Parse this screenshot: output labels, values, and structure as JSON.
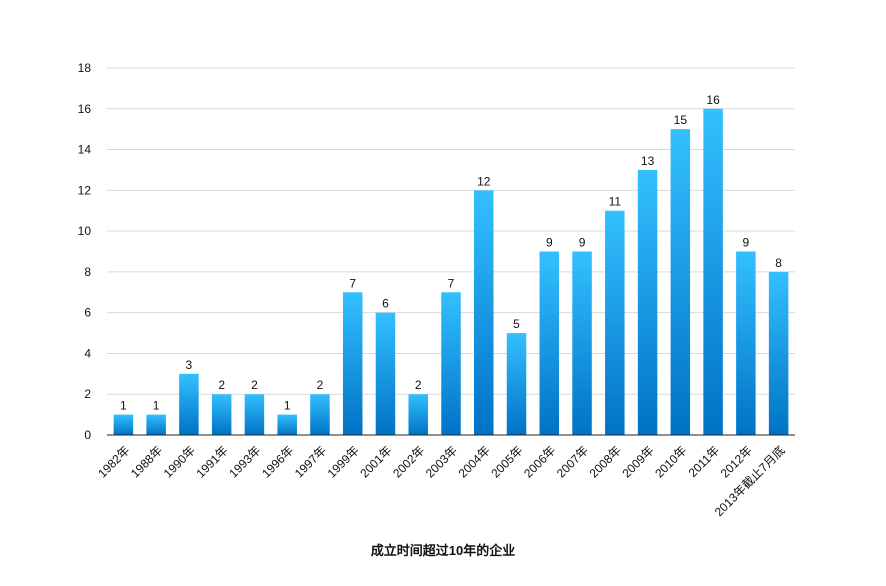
{
  "chart_data": {
    "type": "bar",
    "title": "成立时间超过10年的企业",
    "xlabel": "",
    "ylabel": "",
    "ylim": [
      0,
      18
    ],
    "yticks": [
      0,
      2,
      4,
      6,
      8,
      10,
      12,
      14,
      16,
      18
    ],
    "grid": true,
    "legend": "none",
    "bar_color_top": "#33c0ff",
    "bar_color_bottom": "#0072c6",
    "categories": [
      "1982年",
      "1988年",
      "1990年",
      "1991年",
      "1993年",
      "1996年",
      "1997年",
      "1999年",
      "2001年",
      "2002年",
      "2003年",
      "2004年",
      "2005年",
      "2006年",
      "2007年",
      "2008年",
      "2009年",
      "2010年",
      "2011年",
      "2012年",
      "2013年截止7月底"
    ],
    "values": [
      1,
      1,
      3,
      2,
      2,
      1,
      2,
      7,
      6,
      2,
      7,
      12,
      5,
      9,
      9,
      11,
      13,
      15,
      16,
      9,
      8
    ]
  }
}
